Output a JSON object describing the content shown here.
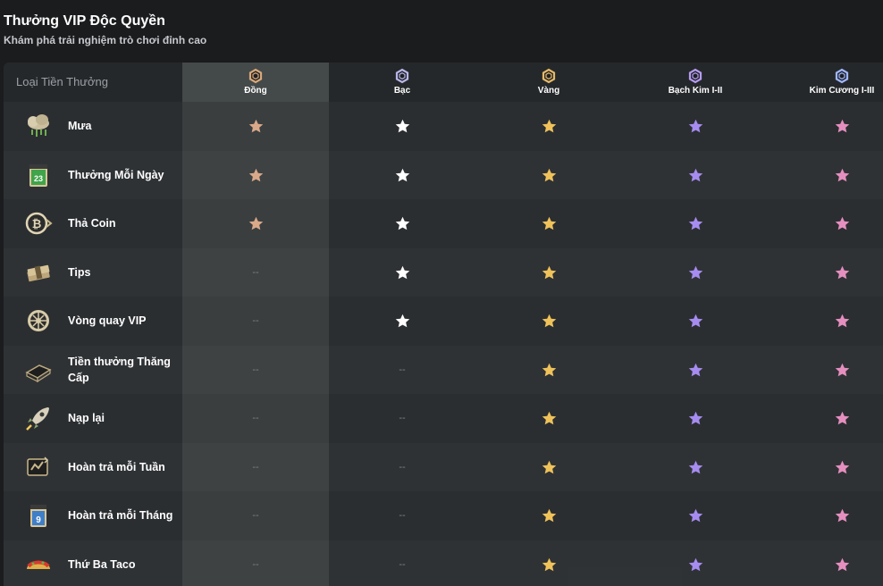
{
  "header": {
    "title": "Thưởng VIP Độc Quyền",
    "subtitle": "Khám phá trải nghiệm trò chơi đỉnh cao"
  },
  "table": {
    "first_col_header": "Loại Tiền Thưởng",
    "tiers": [
      {
        "name": "Đồng",
        "color": "#d8a87a",
        "badge_icon": "bronze-badge-icon"
      },
      {
        "name": "Bạc",
        "color": "#b9b6e8",
        "badge_icon": "silver-badge-icon"
      },
      {
        "name": "Vàng",
        "color": "#e6b96a",
        "badge_icon": "gold-badge-icon"
      },
      {
        "name": "Bạch Kim I-II",
        "color": "#b49bf0",
        "badge_icon": "platinum-badge-icon"
      },
      {
        "name": "Kim Cương I-III",
        "color": "#9fb7ff",
        "badge_icon": "diamond-badge-icon"
      }
    ],
    "star_colors": [
      "#d9a98a",
      "#ffffff",
      "#f0c25a",
      "#a68cf0",
      "#e58fbf"
    ],
    "none_symbol": "--",
    "rows": [
      {
        "label": "Mưa",
        "icon": "rain-cloud-icon",
        "cells": [
          true,
          true,
          true,
          true,
          true
        ]
      },
      {
        "label": "Thưởng Mỗi Ngày",
        "icon": "daily-calendar-icon",
        "cells": [
          true,
          true,
          true,
          true,
          true
        ]
      },
      {
        "label": "Thả Coin",
        "icon": "bitcoin-coin-icon",
        "cells": [
          true,
          true,
          true,
          true,
          true
        ]
      },
      {
        "label": "Tips",
        "icon": "money-stack-icon",
        "cells": [
          false,
          true,
          true,
          true,
          true
        ]
      },
      {
        "label": "Vòng quay VIP",
        "icon": "spin-wheel-icon",
        "cells": [
          false,
          true,
          true,
          true,
          true
        ]
      },
      {
        "label": "Tiền thưởng Thăng Cấp",
        "icon": "treasure-chest-icon",
        "cells": [
          false,
          false,
          true,
          true,
          true
        ]
      },
      {
        "label": "Nạp lại",
        "icon": "rocket-icon",
        "cells": [
          false,
          false,
          true,
          true,
          true
        ]
      },
      {
        "label": "Hoàn trả mỗi Tuần",
        "icon": "weekly-rebate-icon",
        "cells": [
          false,
          false,
          true,
          true,
          true
        ]
      },
      {
        "label": "Hoàn trả mỗi Tháng",
        "icon": "monthly-calendar-icon",
        "cells": [
          false,
          false,
          true,
          true,
          true
        ]
      },
      {
        "label": "Thứ Ba Taco",
        "icon": "taco-icon",
        "cells": [
          false,
          false,
          true,
          true,
          true
        ]
      }
    ],
    "calendar_daily_number": "23",
    "calendar_monthly_number": "9"
  }
}
